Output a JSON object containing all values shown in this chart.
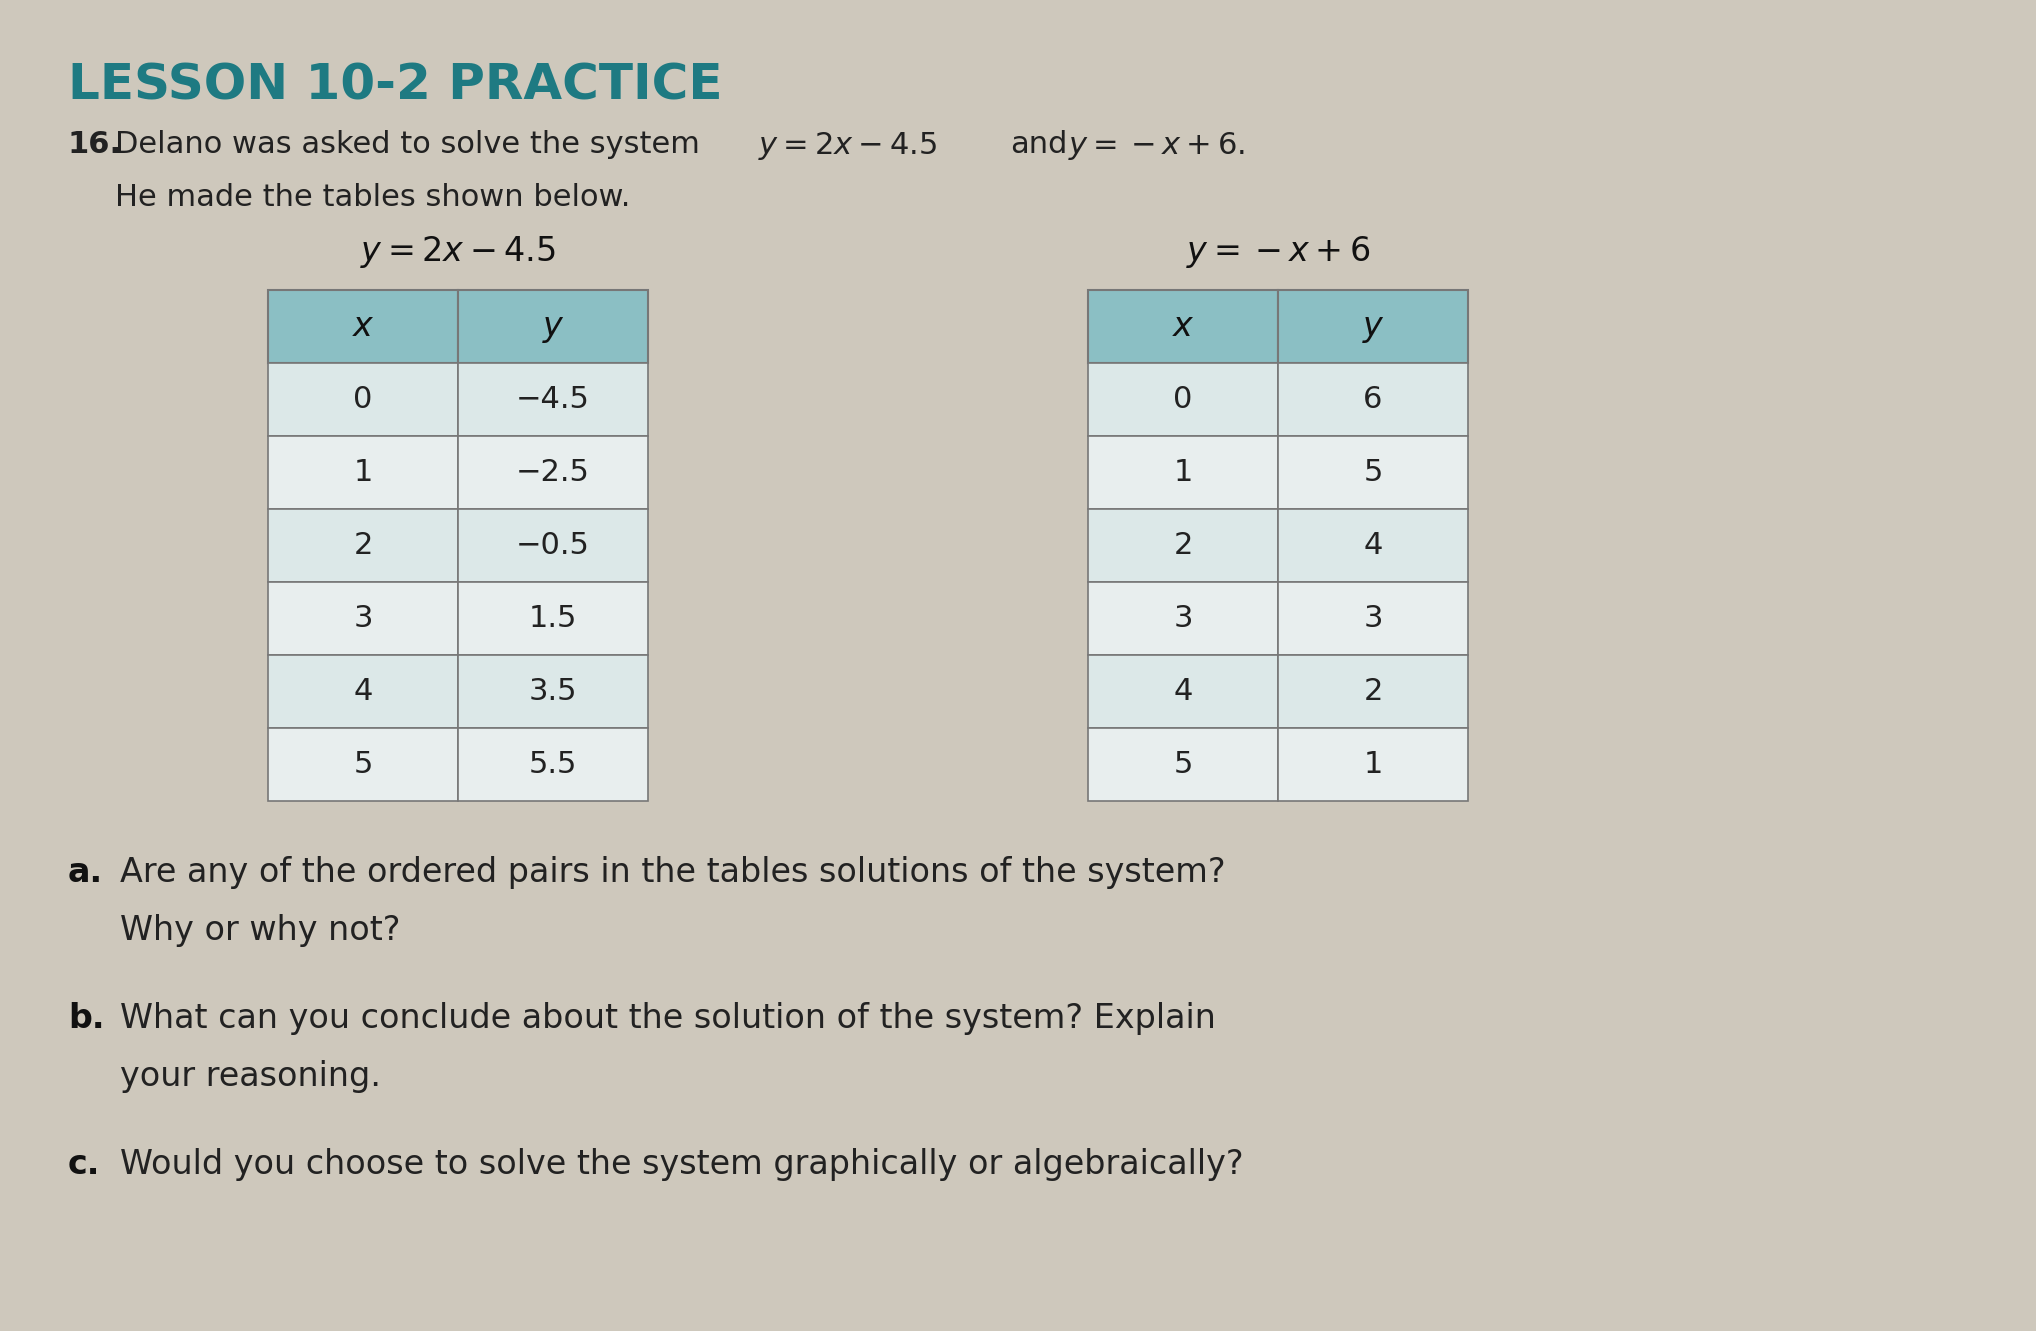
{
  "background_color": "#cec8bc",
  "title_text": "LESSON 10-2 PRACTICE",
  "title_color": "#1e7a82",
  "table1_title": "y = 2x − 4.5",
  "table2_title": "y = −x + 6",
  "table1_x": [
    "0",
    "1",
    "2",
    "3",
    "4",
    "5"
  ],
  "table1_y": [
    "−4.5",
    "−2.5",
    "−0.5",
    "1.5",
    "3.5",
    "5.5"
  ],
  "table2_x": [
    "0",
    "1",
    "2",
    "3",
    "4",
    "5"
  ],
  "table2_y": [
    "6",
    "5",
    "4",
    "3",
    "2",
    "1"
  ],
  "header_color": "#8bbfc4",
  "cell_color_even": "#dce8e8",
  "cell_color_odd": "#e8eeee",
  "border_color": "#777777",
  "text_color": "#222222",
  "q_label_color": "#111111"
}
